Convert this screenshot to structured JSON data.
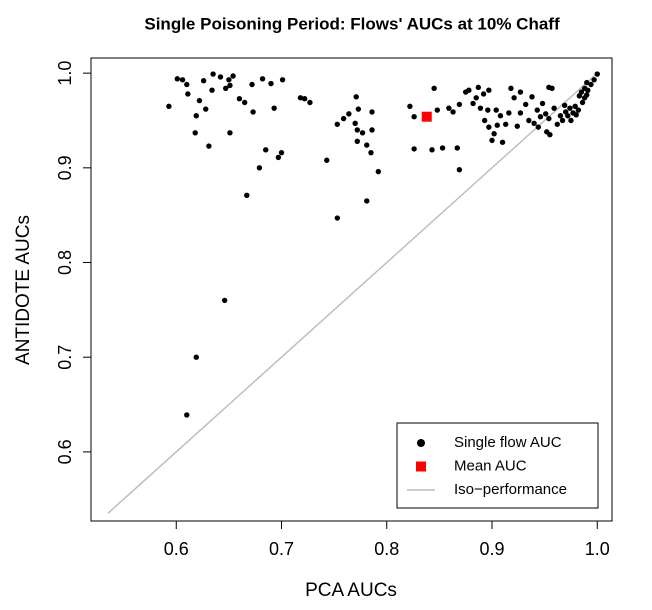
{
  "chart_data": {
    "type": "scatter",
    "title": "Single Poisoning Period: Flows' AUCs at 10% Chaff",
    "x_label": "PCA AUCs",
    "y_label": "ANTIDOTE AUCs",
    "xlim": [
      0.519,
      1.014
    ],
    "ylim": [
      0.527,
      1.016
    ],
    "xticks": [
      0.6,
      0.7,
      0.8,
      0.9,
      {
        "value": 1,
        "label": "1.0"
      }
    ],
    "yticks": [
      0.6,
      0.7,
      0.8,
      0.9,
      {
        "value": 1,
        "label": "1.0"
      }
    ],
    "legend": "bottom-right",
    "series": [
      {
        "name": "Single flow AUC",
        "color": "#000000",
        "marker": "circle",
        "x": [
          0.593,
          0.601,
          0.606,
          0.61,
          0.611,
          0.619,
          0.618,
          0.622,
          0.626,
          0.628,
          0.631,
          0.634,
          0.635,
          0.642,
          0.647,
          0.65,
          0.651,
          0.654,
          0.651,
          0.66,
          0.665,
          0.667,
          0.672,
          0.673,
          0.679,
          0.685,
          0.682,
          0.69,
          0.697,
          0.7,
          0.701,
          0.646,
          0.619,
          0.61,
          0.693,
          0.718,
          0.722,
          0.727,
          0.743,
          0.753,
          0.753,
          0.759,
          0.764,
          0.771,
          0.773,
          0.77,
          0.772,
          0.772,
          0.777,
          0.781,
          0.781,
          0.785,
          0.786,
          0.786,
          0.792,
          0.822,
          0.826,
          0.826,
          0.843,
          0.845,
          0.848,
          0.853,
          0.859,
          0.863,
          0.867,
          0.869,
          0.869,
          0.875,
          0.878,
          0.882,
          0.885,
          0.887,
          0.889,
          0.892,
          0.893,
          0.896,
          0.897,
          0.897,
          0.9,
          0.902,
          0.904,
          0.905,
          0.908,
          0.91,
          0.913,
          0.916,
          0.918,
          0.921,
          0.924,
          0.927,
          0.927,
          0.932,
          0.935,
          0.938,
          0.94,
          0.943,
          0.944,
          0.946,
          0.948,
          0.951,
          0.952,
          0.954,
          0.954,
          0.955,
          0.957,
          0.959,
          0.962,
          0.965,
          0.967,
          0.969,
          0.97,
          0.972,
          0.974,
          0.975,
          0.977,
          0.979,
          0.98,
          0.982,
          0.983,
          0.985,
          0.986,
          0.988,
          0.99,
          0.991,
          0.994,
          0.997,
          1.0,
          0.988,
          0.99
        ],
        "values": [
          0.965,
          0.994,
          0.993,
          0.988,
          0.978,
          0.955,
          0.937,
          0.971,
          0.992,
          0.962,
          0.923,
          0.982,
          0.999,
          0.996,
          0.984,
          0.993,
          0.937,
          0.997,
          0.987,
          0.973,
          0.969,
          0.871,
          0.988,
          0.959,
          0.9,
          0.919,
          0.994,
          0.989,
          0.911,
          0.916,
          0.993,
          0.76,
          0.7,
          0.639,
          0.963,
          0.974,
          0.973,
          0.969,
          0.908,
          0.847,
          0.946,
          0.952,
          0.957,
          0.975,
          0.962,
          0.947,
          0.94,
          0.928,
          0.937,
          0.924,
          0.865,
          0.916,
          0.959,
          0.94,
          0.896,
          0.965,
          0.954,
          0.92,
          0.919,
          0.984,
          0.961,
          0.921,
          0.963,
          0.959,
          0.921,
          0.898,
          0.967,
          0.98,
          0.982,
          0.968,
          0.974,
          0.985,
          0.963,
          0.978,
          0.95,
          0.961,
          0.943,
          0.982,
          0.929,
          0.936,
          0.961,
          0.945,
          0.955,
          0.927,
          0.946,
          0.958,
          0.984,
          0.974,
          0.944,
          0.958,
          0.98,
          0.967,
          0.95,
          0.975,
          0.947,
          0.961,
          0.943,
          0.954,
          0.968,
          0.957,
          0.938,
          0.985,
          0.952,
          0.935,
          0.984,
          0.963,
          0.946,
          0.955,
          0.95,
          0.966,
          0.959,
          0.955,
          0.963,
          0.95,
          0.958,
          0.965,
          0.956,
          0.961,
          0.976,
          0.98,
          0.969,
          0.974,
          0.977,
          0.982,
          0.988,
          0.993,
          0.999,
          0.984,
          0.99
        ]
      },
      {
        "name": "Mean AUC",
        "color": "#ff0000",
        "marker": "square",
        "x": [
          0.838
        ],
        "values": [
          0.954
        ]
      },
      {
        "name": "Iso−performance",
        "color": "#bebebe",
        "marker": "line",
        "x": [
          0.535,
          1.0
        ],
        "values": [
          0.535,
          1.0
        ]
      }
    ]
  }
}
